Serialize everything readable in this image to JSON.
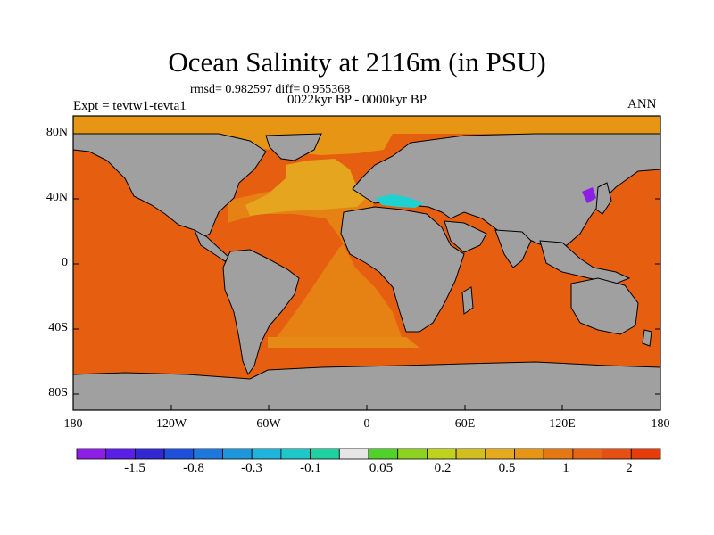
{
  "title": "Ocean Salinity at 2116m (in PSU)",
  "stats": "rmsd= 0.982597 diff= 0.955368",
  "left_label": "Expt = tevtw1-tevta1",
  "center_label": "0022kyr BP - 0000kyr BP",
  "right_label": "ANN",
  "lat_labels": [
    "80N",
    "40N",
    "0",
    "40S",
    "80S"
  ],
  "lon_labels": [
    "180",
    "120W",
    "60W",
    "0",
    "60E",
    "120E",
    "180"
  ],
  "colorbar": {
    "colors": [
      "#8c1ee6",
      "#5a1ee6",
      "#3228d2",
      "#1e50dc",
      "#1e78dc",
      "#1e96dc",
      "#1eb4dc",
      "#1ec8c8",
      "#1ed2a0",
      "#e6e6e6",
      "#50d228",
      "#8cd21e",
      "#bed21e",
      "#d2be1e",
      "#e6aa1e",
      "#e69614",
      "#e67814",
      "#e66414",
      "#e65014",
      "#e63c0a"
    ],
    "labels": [
      "-1.5",
      "-0.8",
      "-0.3",
      "-0.1",
      "0.05",
      "0.2",
      "0.5",
      "1",
      "2"
    ]
  },
  "legend": {
    "land": "#a0a0a0",
    "pacific": "#e65e10",
    "atlantic_deep": "#e68214",
    "north_atlantic": "#e6a51e",
    "arctic": "#e69614",
    "mediterranean": "#1ed2d2",
    "japan_sea": "#8c1ee6"
  }
}
